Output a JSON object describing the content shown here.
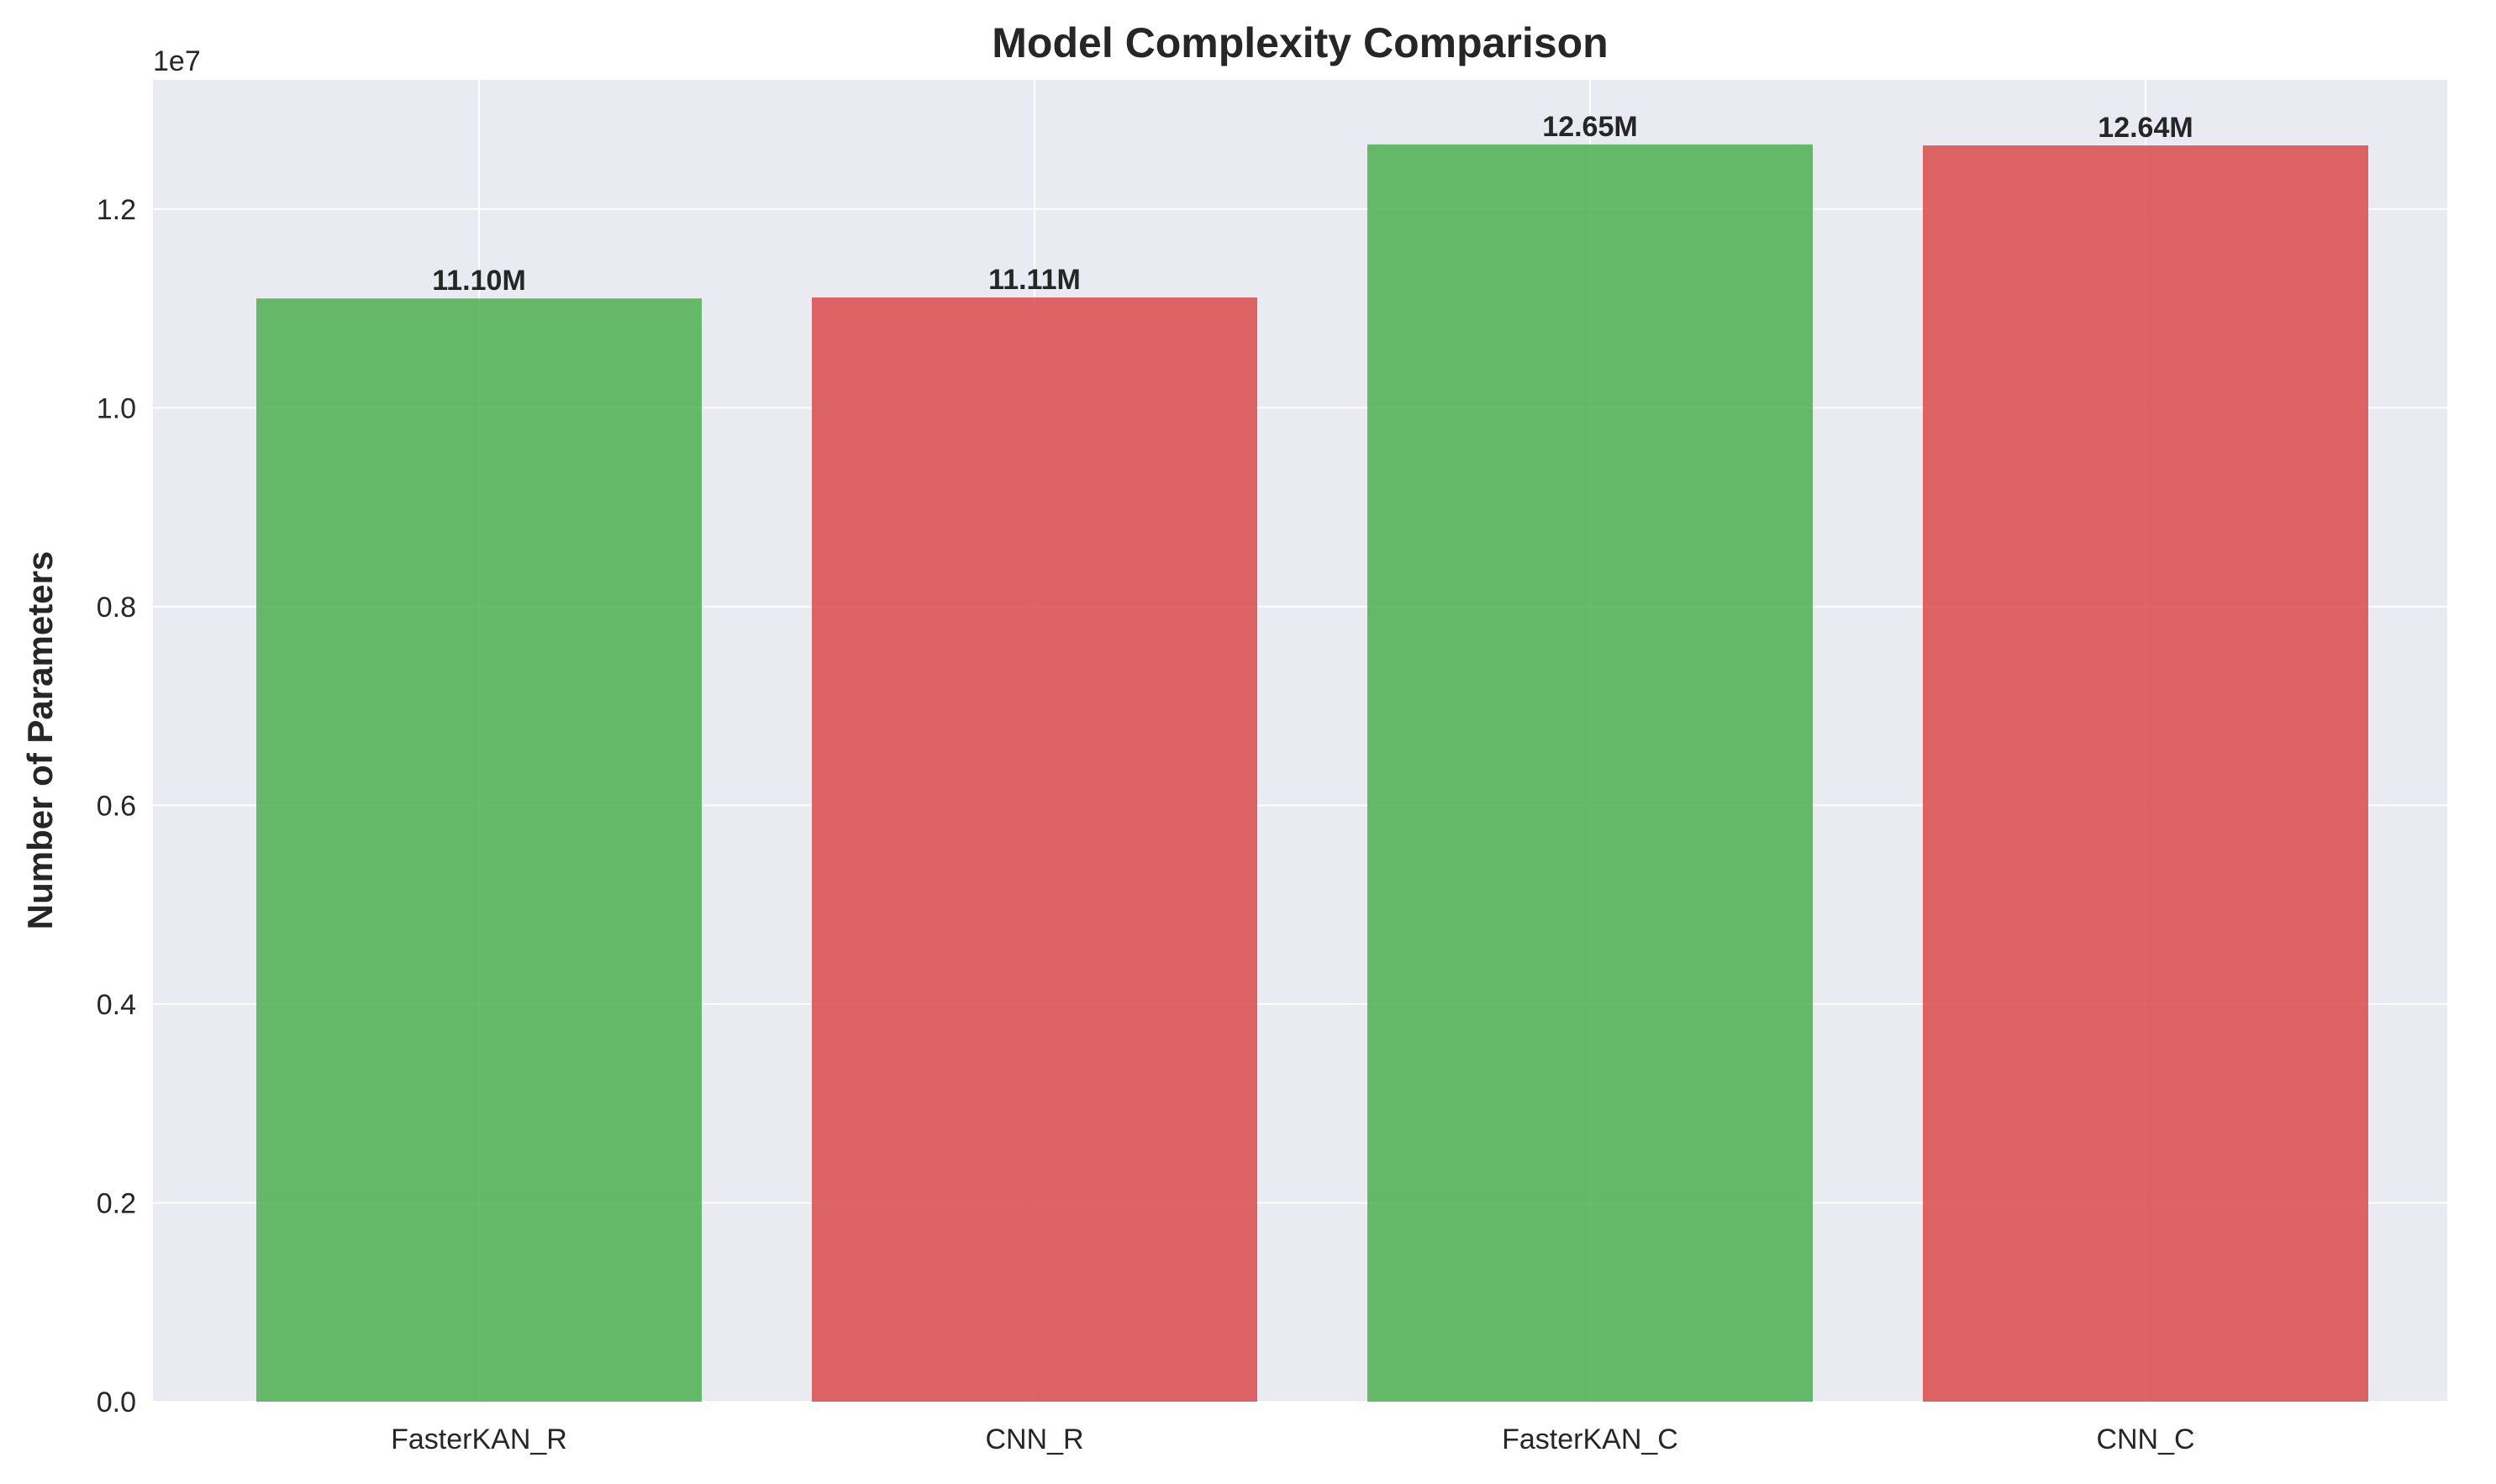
{
  "chart_data": {
    "type": "bar",
    "title": "Model Complexity Comparison",
    "xlabel": "",
    "ylabel": "Number of Parameters",
    "y_offset_label": "1e7",
    "categories": [
      "FasterKAN_R",
      "CNN_R",
      "FasterKAN_C",
      "CNN_C"
    ],
    "values": [
      11100000,
      11110000,
      12650000,
      12640000
    ],
    "data_labels": [
      "11.10M",
      "11.11M",
      "12.65M",
      "12.64M"
    ],
    "bar_colors": [
      "#4caf50",
      "#d94a4a",
      "#4caf50",
      "#d94a4a"
    ],
    "ylim": [
      0,
      13300000
    ],
    "yticks": [
      0,
      2000000,
      4000000,
      6000000,
      8000000,
      10000000,
      12000000
    ],
    "ytick_labels": [
      "0.0",
      "0.2",
      "0.4",
      "0.6",
      "0.8",
      "1.0",
      "1.2"
    ],
    "grid": true,
    "background_color": "#eaeaf2"
  }
}
